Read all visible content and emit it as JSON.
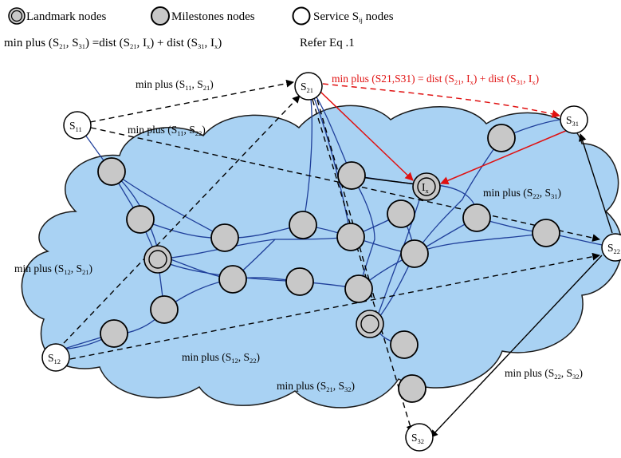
{
  "legend": {
    "landmark": "Landmark nodes",
    "milestone": "Milestones nodes",
    "service_prefix": "Service S",
    "service_sub": "ij",
    "service_suffix": " nodes"
  },
  "equation": {
    "p1": "min plus (S",
    "s1": "21",
    "p2": ", S",
    "s2": "31",
    "p3": ") =dist (S",
    "s3": "21",
    "p4": ", I",
    "s4": "x",
    "p5": ") + dist (S",
    "s5": "31",
    "p6": ", I",
    "s6": "x",
    "p7": ")",
    "ref": "Refer Eq .1"
  },
  "service_nodes": [
    {
      "id": "S11",
      "base": "S",
      "sub": "11"
    },
    {
      "id": "S21",
      "base": "S",
      "sub": "21"
    },
    {
      "id": "S31",
      "base": "S",
      "sub": "31"
    },
    {
      "id": "S22",
      "base": "S",
      "sub": "22"
    },
    {
      "id": "S12",
      "base": "S",
      "sub": "12"
    },
    {
      "id": "S32",
      "base": "S",
      "sub": "32"
    }
  ],
  "landmark_label": {
    "base": "I",
    "sub": "x"
  },
  "edge_labels": {
    "red": {
      "pre": "min plus (S21,S31) = dist (S",
      "s1": "21",
      "m1": ", I",
      "s2": "x",
      "m2": ") + dist (S",
      "s3": "31",
      "m3": ", I",
      "s4": "x",
      "end": ")"
    },
    "s11_s21": {
      "pre": "min plus (S",
      "a": "11",
      "mid": ", S",
      "b": "21",
      "end": ")"
    },
    "s11_s22": {
      "pre": "min plus (S",
      "a": "11",
      "mid": ", S",
      "b": "22",
      "end": ")"
    },
    "s22_s31": {
      "pre": "min plus (S",
      "a": "22",
      "mid": ", S",
      "b": "31",
      "end": ")"
    },
    "s12_s21": {
      "pre": "min plus (S",
      "a": "12",
      "mid": ", S",
      "b": "21",
      "end": ")"
    },
    "s12_s22": {
      "pre": "min plus (S",
      "a": "12",
      "mid": ", S",
      "b": "22",
      "end": ")"
    },
    "s21_s32": {
      "pre": "min plus (S",
      "a": "21",
      "mid": ", S",
      "b": "32",
      "end": ")"
    },
    "s22_s32": {
      "pre": "min plus (S",
      "a": "22",
      "mid": ", S",
      "b": "32",
      "end": ")"
    }
  },
  "colors": {
    "cloud_fill": "#a9d2f3",
    "cloud_stroke": "#1a1a1a",
    "node_fill": "#c8c8c8",
    "link_blue": "#1f3f9a",
    "arrow_red": "#e01010"
  }
}
